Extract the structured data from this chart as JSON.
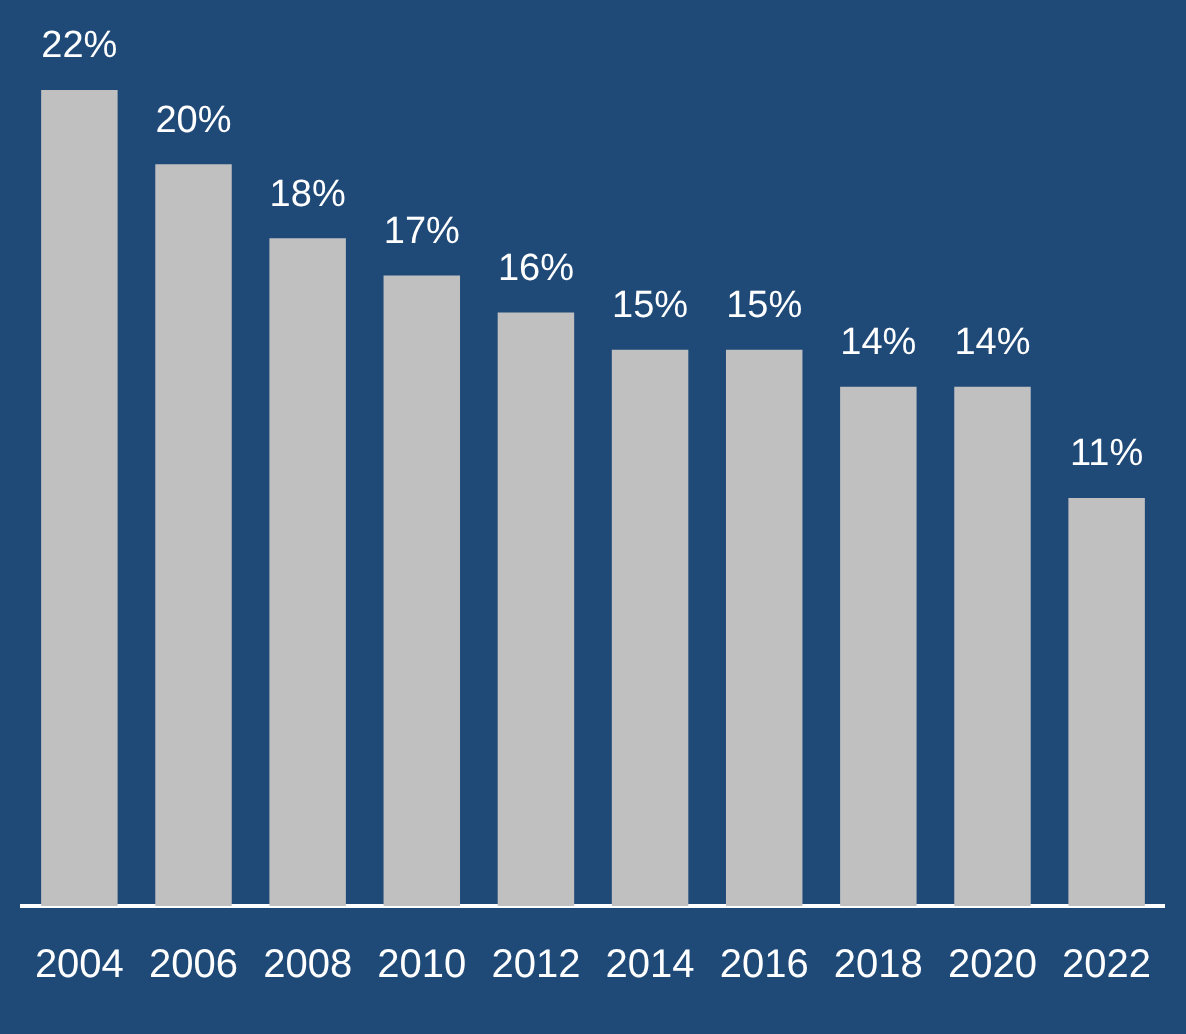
{
  "chart_data": {
    "type": "bar",
    "categories": [
      "2004",
      "2006",
      "2008",
      "2010",
      "2012",
      "2014",
      "2016",
      "2018",
      "2020",
      "2022"
    ],
    "values": [
      22,
      20,
      18,
      17,
      16,
      15,
      15,
      14,
      14,
      11
    ],
    "value_labels": [
      "22%",
      "20%",
      "18%",
      "17%",
      "16%",
      "15%",
      "15%",
      "14%",
      "14%",
      "11%"
    ],
    "color": "#c0c0c0",
    "grid": false,
    "legend": false
  }
}
